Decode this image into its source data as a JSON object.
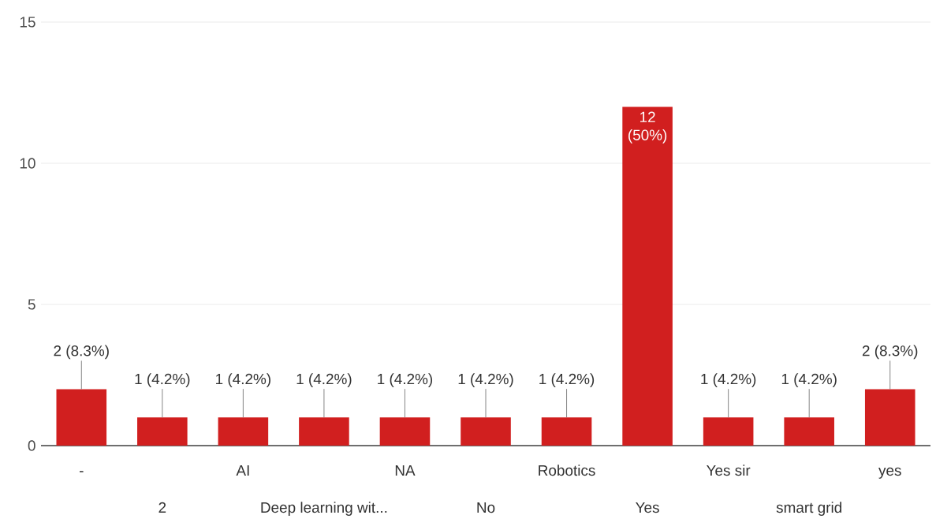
{
  "chart_data": {
    "type": "bar",
    "categories": [
      "-",
      "2",
      "AI",
      "Deep learning wit...",
      "NA",
      "No",
      "Robotics",
      "Yes",
      "Yes sir",
      "smart grid",
      "yes"
    ],
    "values": [
      2,
      1,
      1,
      1,
      1,
      1,
      1,
      12,
      1,
      1,
      2
    ],
    "value_labels": [
      "2 (8.3%)",
      "1 (4.2%)",
      "1 (4.2%)",
      "1 (4.2%)",
      "1 (4.2%)",
      "1 (4.2%)",
      "1 (4.2%)",
      "12 (50%)",
      "1 (4.2%)",
      "1 (4.2%)",
      "2 (8.3%)"
    ],
    "color": "#d11f1f",
    "ylim": [
      0,
      15
    ],
    "yticks": [
      0,
      5,
      10,
      15
    ],
    "grid": "y"
  }
}
